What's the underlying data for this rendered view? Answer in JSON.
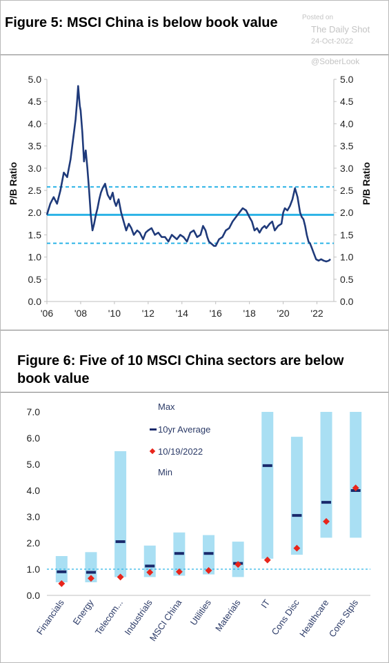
{
  "watermark": {
    "line1": "Posted on",
    "line2": "The Daily Shot",
    "line3": "24-Oct-2022",
    "line4": "@SoberLook"
  },
  "colors": {
    "line": "#1f3a7a",
    "band": "#2bb3e6",
    "bar": "#a9dff3",
    "avg": "#1a2a6c",
    "dot": "#e8251b"
  },
  "chart_data": [
    {
      "type": "line",
      "title": "Figure 5: MSCI China is below book value",
      "ylabel": "P/B Ratio",
      "ylabel_right": "P/B Ratio",
      "ylim": [
        0.0,
        5.0
      ],
      "yticks": [
        "0.0",
        "0.5",
        "1.0",
        "1.5",
        "2.0",
        "2.5",
        "3.0",
        "3.5",
        "4.0",
        "4.5",
        "5.0"
      ],
      "xlim": [
        2006,
        2023
      ],
      "xticks": [
        "'06",
        "'08",
        "'10",
        "'12",
        "'14",
        "'16",
        "'18",
        "'20",
        "'22"
      ],
      "reference_lines": [
        {
          "value": 2.58,
          "style": "dashed"
        },
        {
          "value": 1.95,
          "style": "solid"
        },
        {
          "value": 1.31,
          "style": "dashed"
        }
      ],
      "series": [
        {
          "x": [
            2006.0,
            2006.2,
            2006.4,
            2006.6,
            2006.8,
            2007.0,
            2007.2,
            2007.4,
            2007.5,
            2007.6,
            2007.7,
            2007.8,
            2007.85,
            2007.95,
            2008.0,
            2008.1,
            2008.2,
            2008.3,
            2008.4,
            2008.5,
            2008.6,
            2008.7,
            2008.8,
            2008.9,
            2009.0,
            2009.1,
            2009.2,
            2009.3,
            2009.45,
            2009.6,
            2009.75,
            2009.9,
            2010.0,
            2010.1,
            2010.25,
            2010.4,
            2010.55,
            2010.7,
            2010.85,
            2011.0,
            2011.15,
            2011.35,
            2011.5,
            2011.7,
            2011.85,
            2012.0,
            2012.2,
            2012.4,
            2012.6,
            2012.8,
            2013.0,
            2013.2,
            2013.4,
            2013.55,
            2013.7,
            2013.9,
            2014.1,
            2014.3,
            2014.5,
            2014.7,
            2014.9,
            2015.1,
            2015.25,
            2015.4,
            2015.5,
            2015.6,
            2015.75,
            2015.9,
            2016.0,
            2016.2,
            2016.4,
            2016.6,
            2016.8,
            2017.0,
            2017.2,
            2017.4,
            2017.6,
            2017.8,
            2018.0,
            2018.15,
            2018.3,
            2018.45,
            2018.6,
            2018.75,
            2018.9,
            2019.0,
            2019.2,
            2019.35,
            2019.5,
            2019.7,
            2019.9,
            2020.0,
            2020.1,
            2020.25,
            2020.4,
            2020.55,
            2020.7,
            2020.85,
            2021.0,
            2021.1,
            2021.2,
            2021.3,
            2021.4,
            2021.5,
            2021.6,
            2021.7,
            2021.8,
            2021.95,
            2022.1,
            2022.25,
            2022.4,
            2022.55,
            2022.7,
            2022.8
          ],
          "values": [
            1.95,
            2.2,
            2.35,
            2.2,
            2.5,
            2.9,
            2.8,
            3.2,
            3.5,
            3.8,
            4.1,
            4.55,
            4.85,
            4.4,
            4.3,
            3.8,
            3.15,
            3.4,
            3.0,
            2.5,
            1.95,
            1.6,
            1.75,
            1.95,
            2.1,
            2.3,
            2.45,
            2.55,
            2.65,
            2.4,
            2.3,
            2.45,
            2.25,
            2.15,
            2.3,
            2.0,
            1.8,
            1.6,
            1.75,
            1.65,
            1.5,
            1.6,
            1.55,
            1.4,
            1.55,
            1.6,
            1.65,
            1.5,
            1.55,
            1.45,
            1.45,
            1.35,
            1.5,
            1.45,
            1.4,
            1.5,
            1.45,
            1.35,
            1.55,
            1.6,
            1.45,
            1.5,
            1.7,
            1.6,
            1.45,
            1.35,
            1.3,
            1.25,
            1.25,
            1.4,
            1.45,
            1.6,
            1.65,
            1.8,
            1.9,
            2.0,
            2.1,
            2.05,
            1.9,
            1.8,
            1.6,
            1.65,
            1.55,
            1.65,
            1.7,
            1.65,
            1.75,
            1.8,
            1.6,
            1.7,
            1.75,
            2.0,
            2.1,
            2.05,
            2.15,
            2.3,
            2.55,
            2.35,
            2.0,
            1.9,
            1.85,
            1.7,
            1.5,
            1.35,
            1.3,
            1.2,
            1.1,
            0.95,
            0.92,
            0.95,
            0.92,
            0.9,
            0.92,
            0.95
          ]
        }
      ]
    },
    {
      "type": "bar",
      "title": "Figure 6: Five of 10 MSCI China sectors are below book value",
      "ylim": [
        0.0,
        7.0
      ],
      "yticks": [
        "0.0",
        "1.0",
        "2.0",
        "3.0",
        "4.0",
        "5.0",
        "6.0",
        "7.0"
      ],
      "reference_line": 1.0,
      "legend": [
        "Max",
        "10yr Average",
        "10/19/2022",
        "Min"
      ],
      "categories": [
        "Financials",
        "Energy",
        "Telecom...",
        "Industrials",
        "MSCI China",
        "Utilities",
        "Materials",
        "IT",
        "Cons Disc",
        "Healthcare",
        "Cons Stpls"
      ],
      "min": [
        0.5,
        0.5,
        0.7,
        0.7,
        0.75,
        0.8,
        0.7,
        1.4,
        1.55,
        2.2,
        2.2
      ],
      "max": [
        1.5,
        1.65,
        5.5,
        1.9,
        2.4,
        2.3,
        2.05,
        7.0,
        6.05,
        7.0,
        7.0
      ],
      "avg": [
        0.9,
        0.88,
        2.05,
        1.12,
        1.6,
        1.6,
        1.22,
        4.95,
        3.05,
        3.55,
        4.0
      ],
      "current": [
        0.45,
        0.65,
        0.7,
        0.88,
        0.9,
        0.95,
        1.18,
        1.35,
        1.8,
        2.82,
        4.1
      ]
    }
  ]
}
